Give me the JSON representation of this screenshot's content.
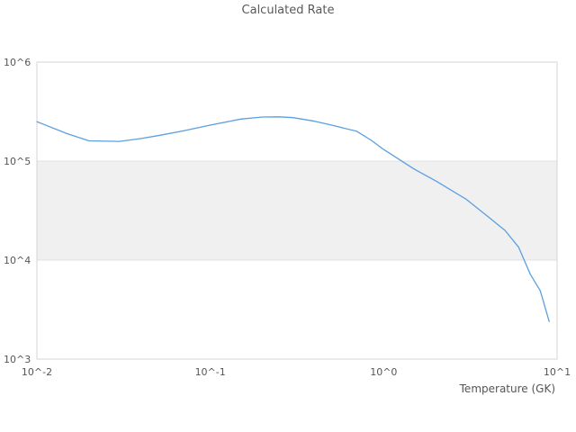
{
  "header": {
    "title": "Calculated Rate"
  },
  "chart_data": {
    "type": "line",
    "title": "Calculated Rate",
    "xlabel": "Temperature (GK)",
    "ylabel": "",
    "x_scale": "log",
    "y_scale": "log",
    "xlim": [
      0.01,
      10
    ],
    "ylim": [
      1000,
      1000000
    ],
    "legend_position": "none",
    "grid": "horizontal decade band between 1e4 and 1e5",
    "x_ticks": [
      {
        "label": "10^-2",
        "value": 0.01
      },
      {
        "label": "10^-1",
        "value": 0.1
      },
      {
        "label": "10^0",
        "value": 1
      },
      {
        "label": "10^1",
        "value": 10
      }
    ],
    "y_ticks": [
      {
        "label": "10^6",
        "value": 1000000
      },
      {
        "label": "10^5",
        "value": 100000
      },
      {
        "label": "10^4",
        "value": 10000
      },
      {
        "label": "10^3",
        "value": 1000
      }
    ],
    "shaded_band": {
      "y_from": 10000,
      "y_to": 100000,
      "fill_color": "#f0f0f0",
      "edge_color": "#e0e0e0"
    },
    "plot_border_color": "#d4d4d4",
    "series": [
      {
        "name": "Calculated Rate",
        "color": "#5b9fe0",
        "points": [
          [
            0.01,
            250000
          ],
          [
            0.015,
            189000
          ],
          [
            0.02,
            160000
          ],
          [
            0.03,
            158000
          ],
          [
            0.04,
            169000
          ],
          [
            0.05,
            181000
          ],
          [
            0.07,
            202000
          ],
          [
            0.1,
            231000
          ],
          [
            0.15,
            266000
          ],
          [
            0.2,
            279000
          ],
          [
            0.25,
            280000
          ],
          [
            0.3,
            275000
          ],
          [
            0.4,
            253000
          ],
          [
            0.5,
            231000
          ],
          [
            0.7,
            200000
          ],
          [
            0.85,
            162000
          ],
          [
            1.0,
            131000
          ],
          [
            1.5,
            83000
          ],
          [
            2.0,
            63000
          ],
          [
            3.0,
            41000
          ],
          [
            4.0,
            27500
          ],
          [
            5.0,
            20000
          ],
          [
            6.0,
            13500
          ],
          [
            7.0,
            7200
          ],
          [
            8.0,
            4900
          ],
          [
            9.0,
            2400
          ]
        ]
      }
    ]
  }
}
